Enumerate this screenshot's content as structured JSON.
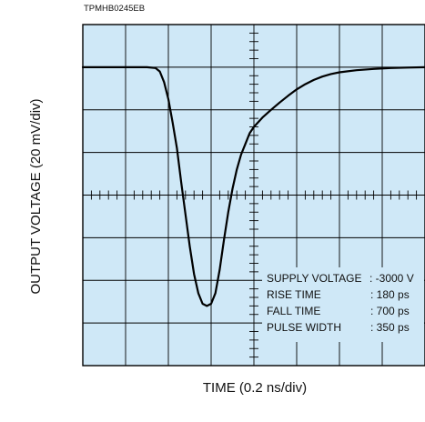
{
  "figure_id": "TPMHB0245EB",
  "chart_data": {
    "type": "line",
    "title": "",
    "xlabel": "TIME (0.2 ns/div)",
    "ylabel": "OUTPUT VOLTAGE (20 mV/div)",
    "grid": true,
    "x_divisions": 8,
    "y_divisions": 8,
    "xlim": [
      0,
      8
    ],
    "ylim": [
      -8,
      0
    ],
    "background_color": "#cfe8f7",
    "grid_color": "#000000",
    "trace_color": "#000000",
    "series": [
      {
        "x": [
          0,
          0.5,
          1.0,
          1.5,
          1.7,
          1.8,
          1.9,
          2.0,
          2.1,
          2.2,
          2.3,
          2.4,
          2.5,
          2.6,
          2.7,
          2.8,
          2.9,
          3.0,
          3.1,
          3.2,
          3.3,
          3.4,
          3.5,
          3.6,
          3.7,
          3.8,
          3.9,
          4.0,
          4.2,
          4.4,
          4.6,
          4.8,
          5.0,
          5.2,
          5.4,
          5.6,
          5.8,
          6.0,
          6.4,
          6.8,
          7.2,
          7.6,
          8.0
        ],
        "values": [
          -1.0,
          -1.0,
          -1.0,
          -1.0,
          -1.02,
          -1.1,
          -1.35,
          -1.75,
          -2.3,
          -2.9,
          -3.7,
          -4.45,
          -5.2,
          -5.85,
          -6.3,
          -6.55,
          -6.6,
          -6.55,
          -6.3,
          -5.75,
          -5.05,
          -4.4,
          -3.85,
          -3.4,
          -3.05,
          -2.8,
          -2.55,
          -2.4,
          -2.18,
          -2.0,
          -1.83,
          -1.67,
          -1.52,
          -1.4,
          -1.3,
          -1.22,
          -1.16,
          -1.12,
          -1.07,
          -1.04,
          -1.02,
          -1.01,
          -1.0
        ]
      }
    ],
    "annotations": [
      {
        "label": "SUPPLY VOLTAGE",
        "value": ": -3000 V"
      },
      {
        "label": "RISE TIME",
        "value": ": 180 ps"
      },
      {
        "label": "FALL TIME",
        "value": ": 700 ps"
      },
      {
        "label": "PULSE WIDTH",
        "value": ": 350 ps"
      }
    ]
  }
}
